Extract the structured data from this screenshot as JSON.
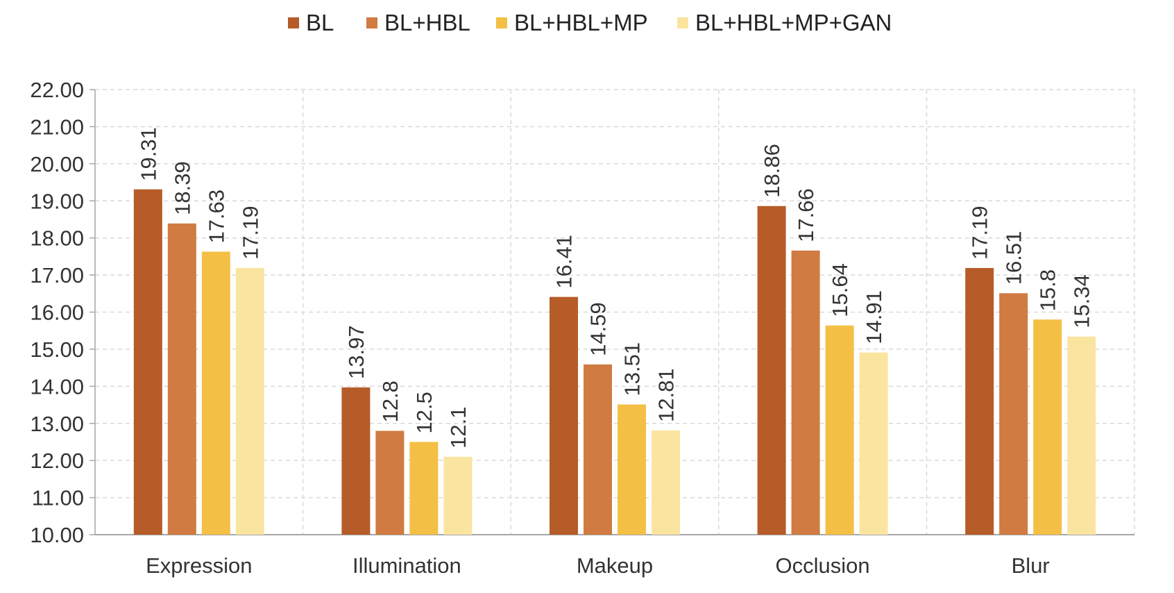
{
  "chart_data": {
    "type": "bar",
    "title": "",
    "xlabel": "",
    "ylabel": "",
    "ylim": [
      10,
      22
    ],
    "yticks": [
      "10.00",
      "11.00",
      "12.00",
      "13.00",
      "14.00",
      "15.00",
      "16.00",
      "17.00",
      "18.00",
      "19.00",
      "20.00",
      "21.00",
      "22.00"
    ],
    "grid": true,
    "legend_position": "top",
    "categories": [
      "Expression",
      "Illumination",
      "Makeup",
      "Occlusion",
      "Blur"
    ],
    "series": [
      {
        "name": "BL",
        "color": "#B65C28",
        "values": [
          19.31,
          13.97,
          16.41,
          18.86,
          17.19
        ],
        "labels": [
          "19.31",
          "13.97",
          "16.41",
          "18.86",
          "17.19"
        ]
      },
      {
        "name": "BL+HBL",
        "color": "#D07B41",
        "values": [
          18.39,
          12.8,
          14.59,
          17.66,
          16.51
        ],
        "labels": [
          "18.39",
          "12.8",
          "14.59",
          "17.66",
          "16.51"
        ]
      },
      {
        "name": "BL+HBL+MP",
        "color": "#F4BF45",
        "values": [
          17.63,
          12.5,
          13.51,
          15.64,
          15.8
        ],
        "labels": [
          "17.63",
          "12.5",
          "13.51",
          "15.64",
          "15.8"
        ]
      },
      {
        "name": "BL+HBL+MP+GAN",
        "color": "#FAE5A0",
        "values": [
          17.19,
          12.1,
          12.81,
          14.91,
          15.34
        ],
        "labels": [
          "17.19",
          "12.1",
          "12.81",
          "14.91",
          "15.34"
        ]
      }
    ]
  }
}
